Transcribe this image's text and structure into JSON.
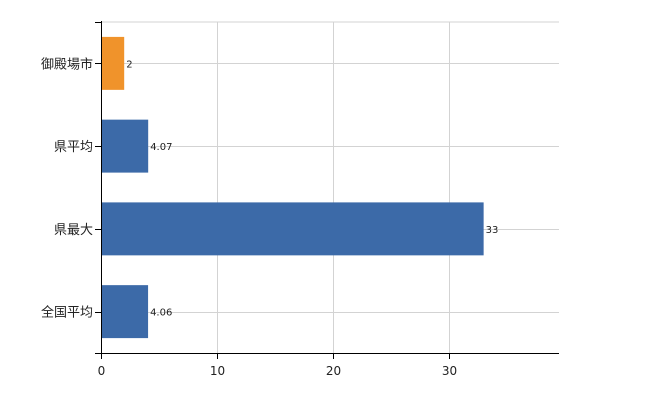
{
  "chart_data": {
    "type": "bar",
    "orientation": "horizontal",
    "categories": [
      "御殿場市",
      "県平均",
      "県最大",
      "全国平均"
    ],
    "values": [
      2,
      4.07,
      33,
      4.06
    ],
    "value_labels": [
      "2",
      "4.07",
      "33",
      "4.06"
    ],
    "highlight_category": "御殿場市",
    "title": "",
    "xlabel": "",
    "ylabel": "",
    "xlim": [
      0,
      39.5
    ],
    "xticks": [
      0,
      10,
      20,
      30
    ],
    "xtick_labels": [
      "0",
      "10",
      "20",
      "30"
    ],
    "grid": true,
    "legend": "none"
  },
  "colors": {
    "highlight": "#f0932b",
    "bar": "#3c6aa8",
    "grid": "#d3d3d3",
    "axis": "#000000"
  }
}
